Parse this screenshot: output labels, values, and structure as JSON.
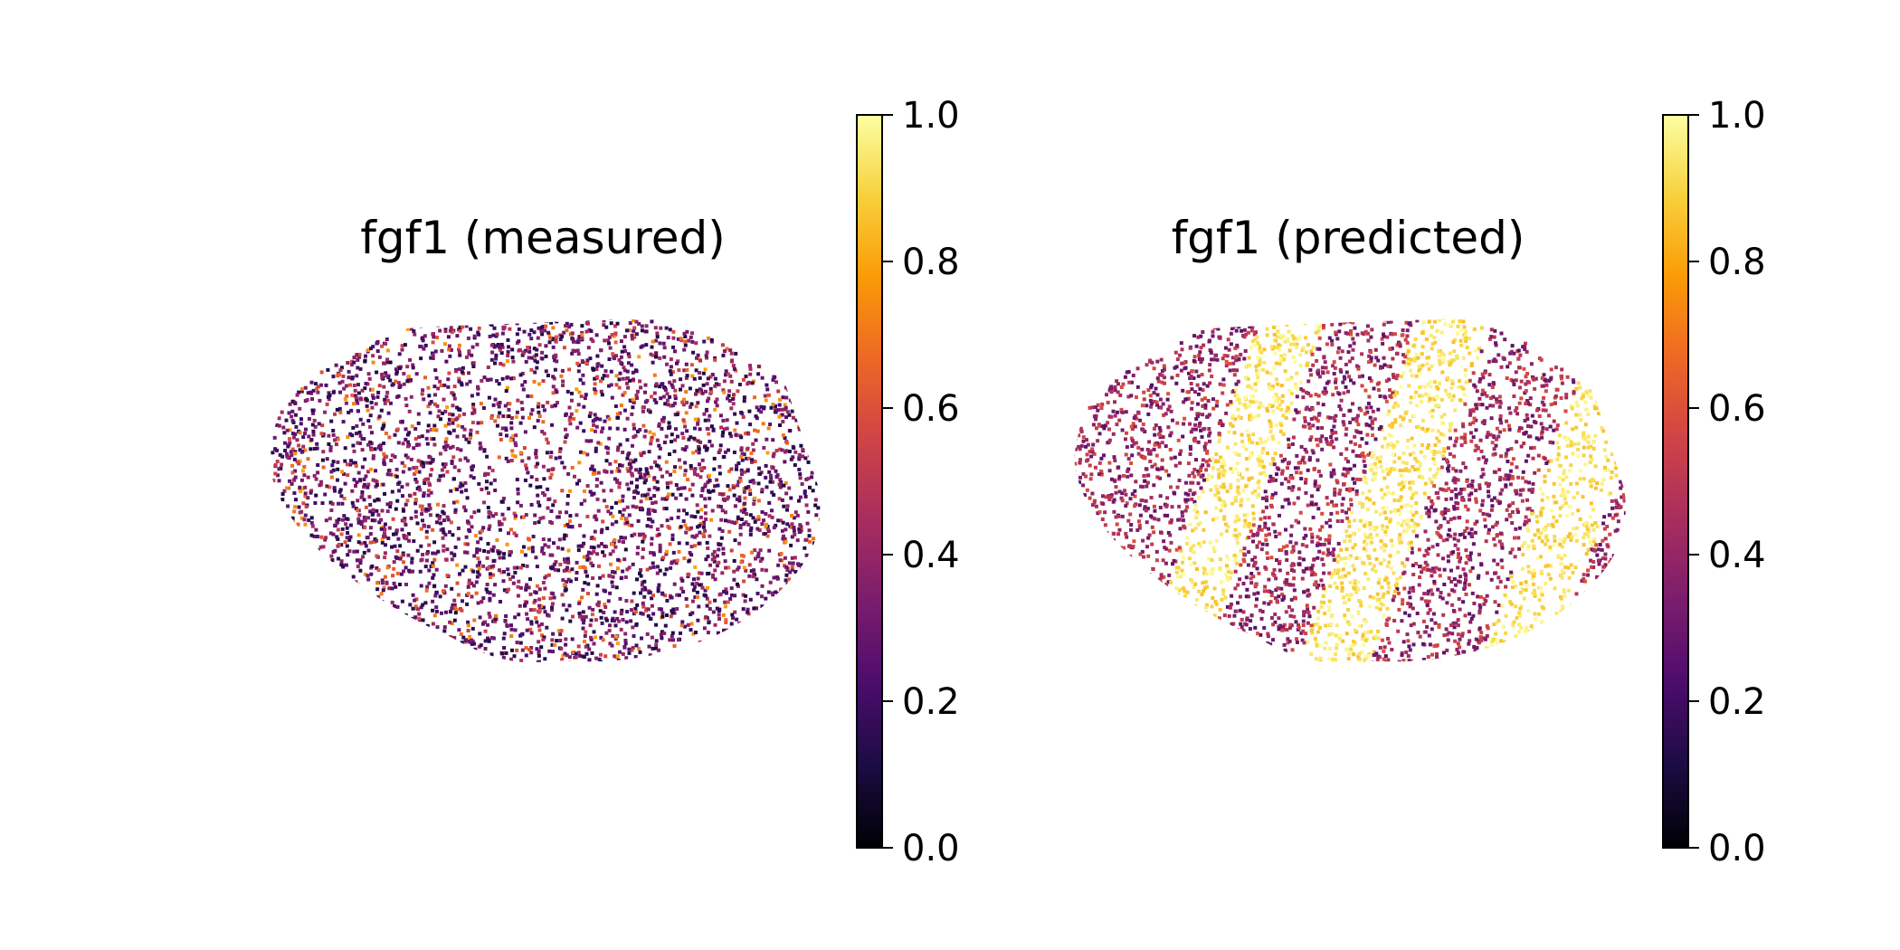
{
  "figure": {
    "panels": [
      {
        "title": "fgf1 (measured)"
      },
      {
        "title": "fgf1 (predicted)"
      }
    ]
  },
  "chart_data": [
    {
      "type": "scatter",
      "title": "fgf1 (measured)",
      "description_of_values": "spatial expression of fgf1 per cell, normalized 0-1",
      "colormap": "inferno",
      "color_range": [
        0.0,
        1.0
      ],
      "axes_visible": false,
      "grid": false,
      "colorbar": {
        "ticks": [
          0.0,
          0.2,
          0.4,
          0.6,
          0.8,
          1.0
        ],
        "tick_labels": [
          "0.0",
          "0.2",
          "0.4",
          "0.6",
          "0.8",
          "1.0"
        ]
      },
      "pattern": "mostly dark purple/black (0.1-0.4) with scattered orange spots (0.5-0.8); white gaps of sparse cells in the center"
    },
    {
      "type": "scatter",
      "title": "fgf1 (predicted)",
      "colormap": "inferno",
      "color_range": [
        0.0,
        1.0
      ],
      "axes_visible": false,
      "grid": false,
      "colorbar": {
        "ticks": [
          0.0,
          0.2,
          0.4,
          0.6,
          0.8,
          1.0
        ],
        "tick_labels": [
          "0.0",
          "0.2",
          "0.4",
          "0.6",
          "0.8",
          "1.0"
        ]
      },
      "pattern": "diagonal bright yellow bands (0.9-1.0) alternating with purple regions (0.3-0.5)"
    }
  ],
  "colors": {
    "inferno": [
      "#000004",
      "#1b0c41",
      "#4a0c6b",
      "#781c6d",
      "#a52c60",
      "#cf4446",
      "#ed6925",
      "#fb9b06",
      "#f7d13d",
      "#fcffa4"
    ]
  }
}
